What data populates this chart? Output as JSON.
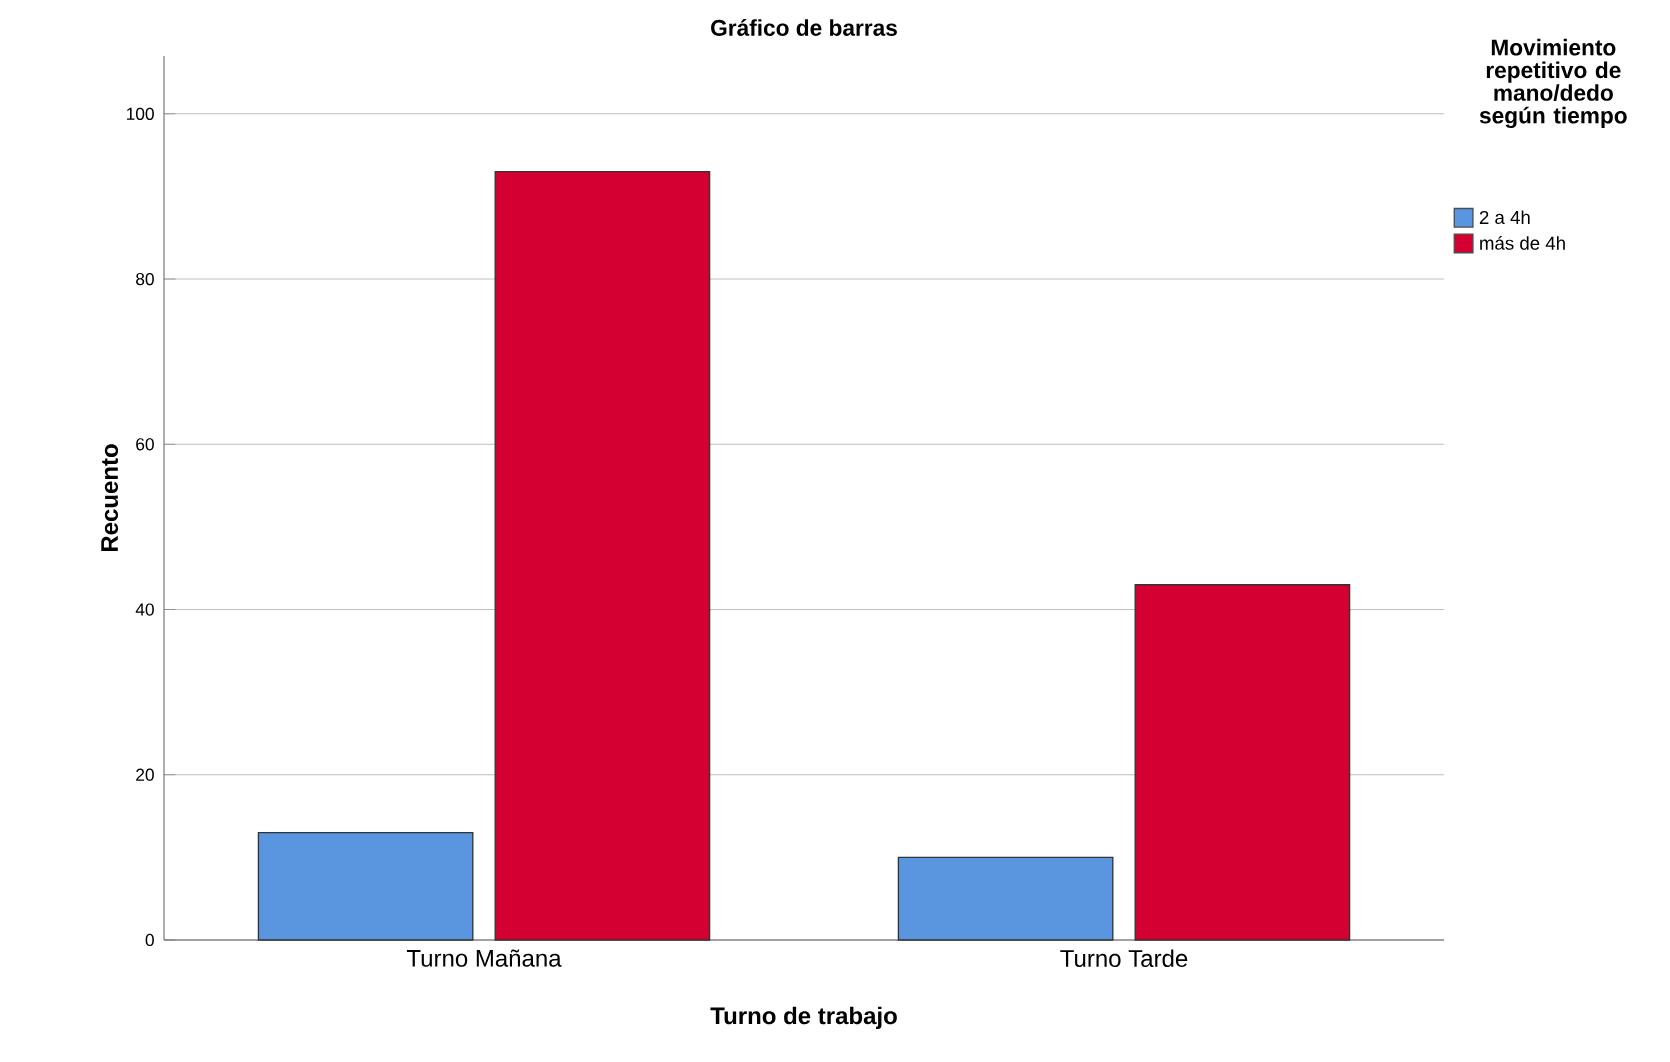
{
  "chart_data": {
    "type": "bar",
    "title": "Gráfico de barras",
    "xlabel": "Turno de trabajo",
    "ylabel": "Recuento",
    "legend_title": "Movimiento repetitivo de mano/dedo según tiempo",
    "categories": [
      "Turno Mañana",
      "Turno Tarde"
    ],
    "series": [
      {
        "name": "2 a 4h",
        "color": "#5a96e0",
        "values": [
          13,
          10
        ]
      },
      {
        "name": "más de 4h",
        "color": "#d50032",
        "values": [
          93,
          43
        ]
      }
    ],
    "ylim": [
      0,
      107
    ],
    "yticks": [
      0,
      20,
      40,
      60,
      80,
      100
    ],
    "grid": "y",
    "legend": "top right"
  }
}
